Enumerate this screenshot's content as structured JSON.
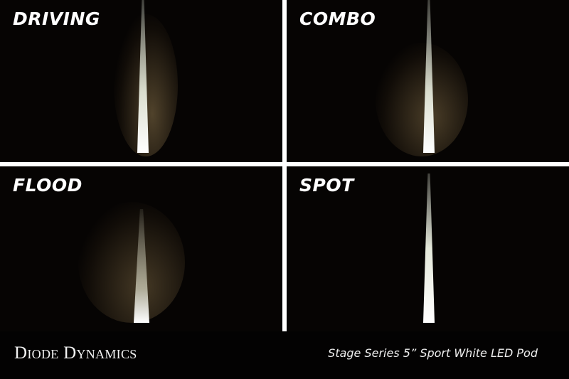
{
  "panels": [
    {
      "label": "DRIVING",
      "beam_spread": "medium"
    },
    {
      "label": "COMBO",
      "beam_spread": "wide-with-center"
    },
    {
      "label": "FLOOD",
      "beam_spread": "wide"
    },
    {
      "label": "SPOT",
      "beam_spread": "narrow"
    }
  ],
  "footer": {
    "brand": "Diode Dynamics",
    "caption": "Stage Series 5” Sport White LED Pod"
  },
  "colors": {
    "background": "#060403",
    "divider": "#ffffff",
    "beam": "#f4f6e8",
    "spill": "#6b5a3a"
  }
}
